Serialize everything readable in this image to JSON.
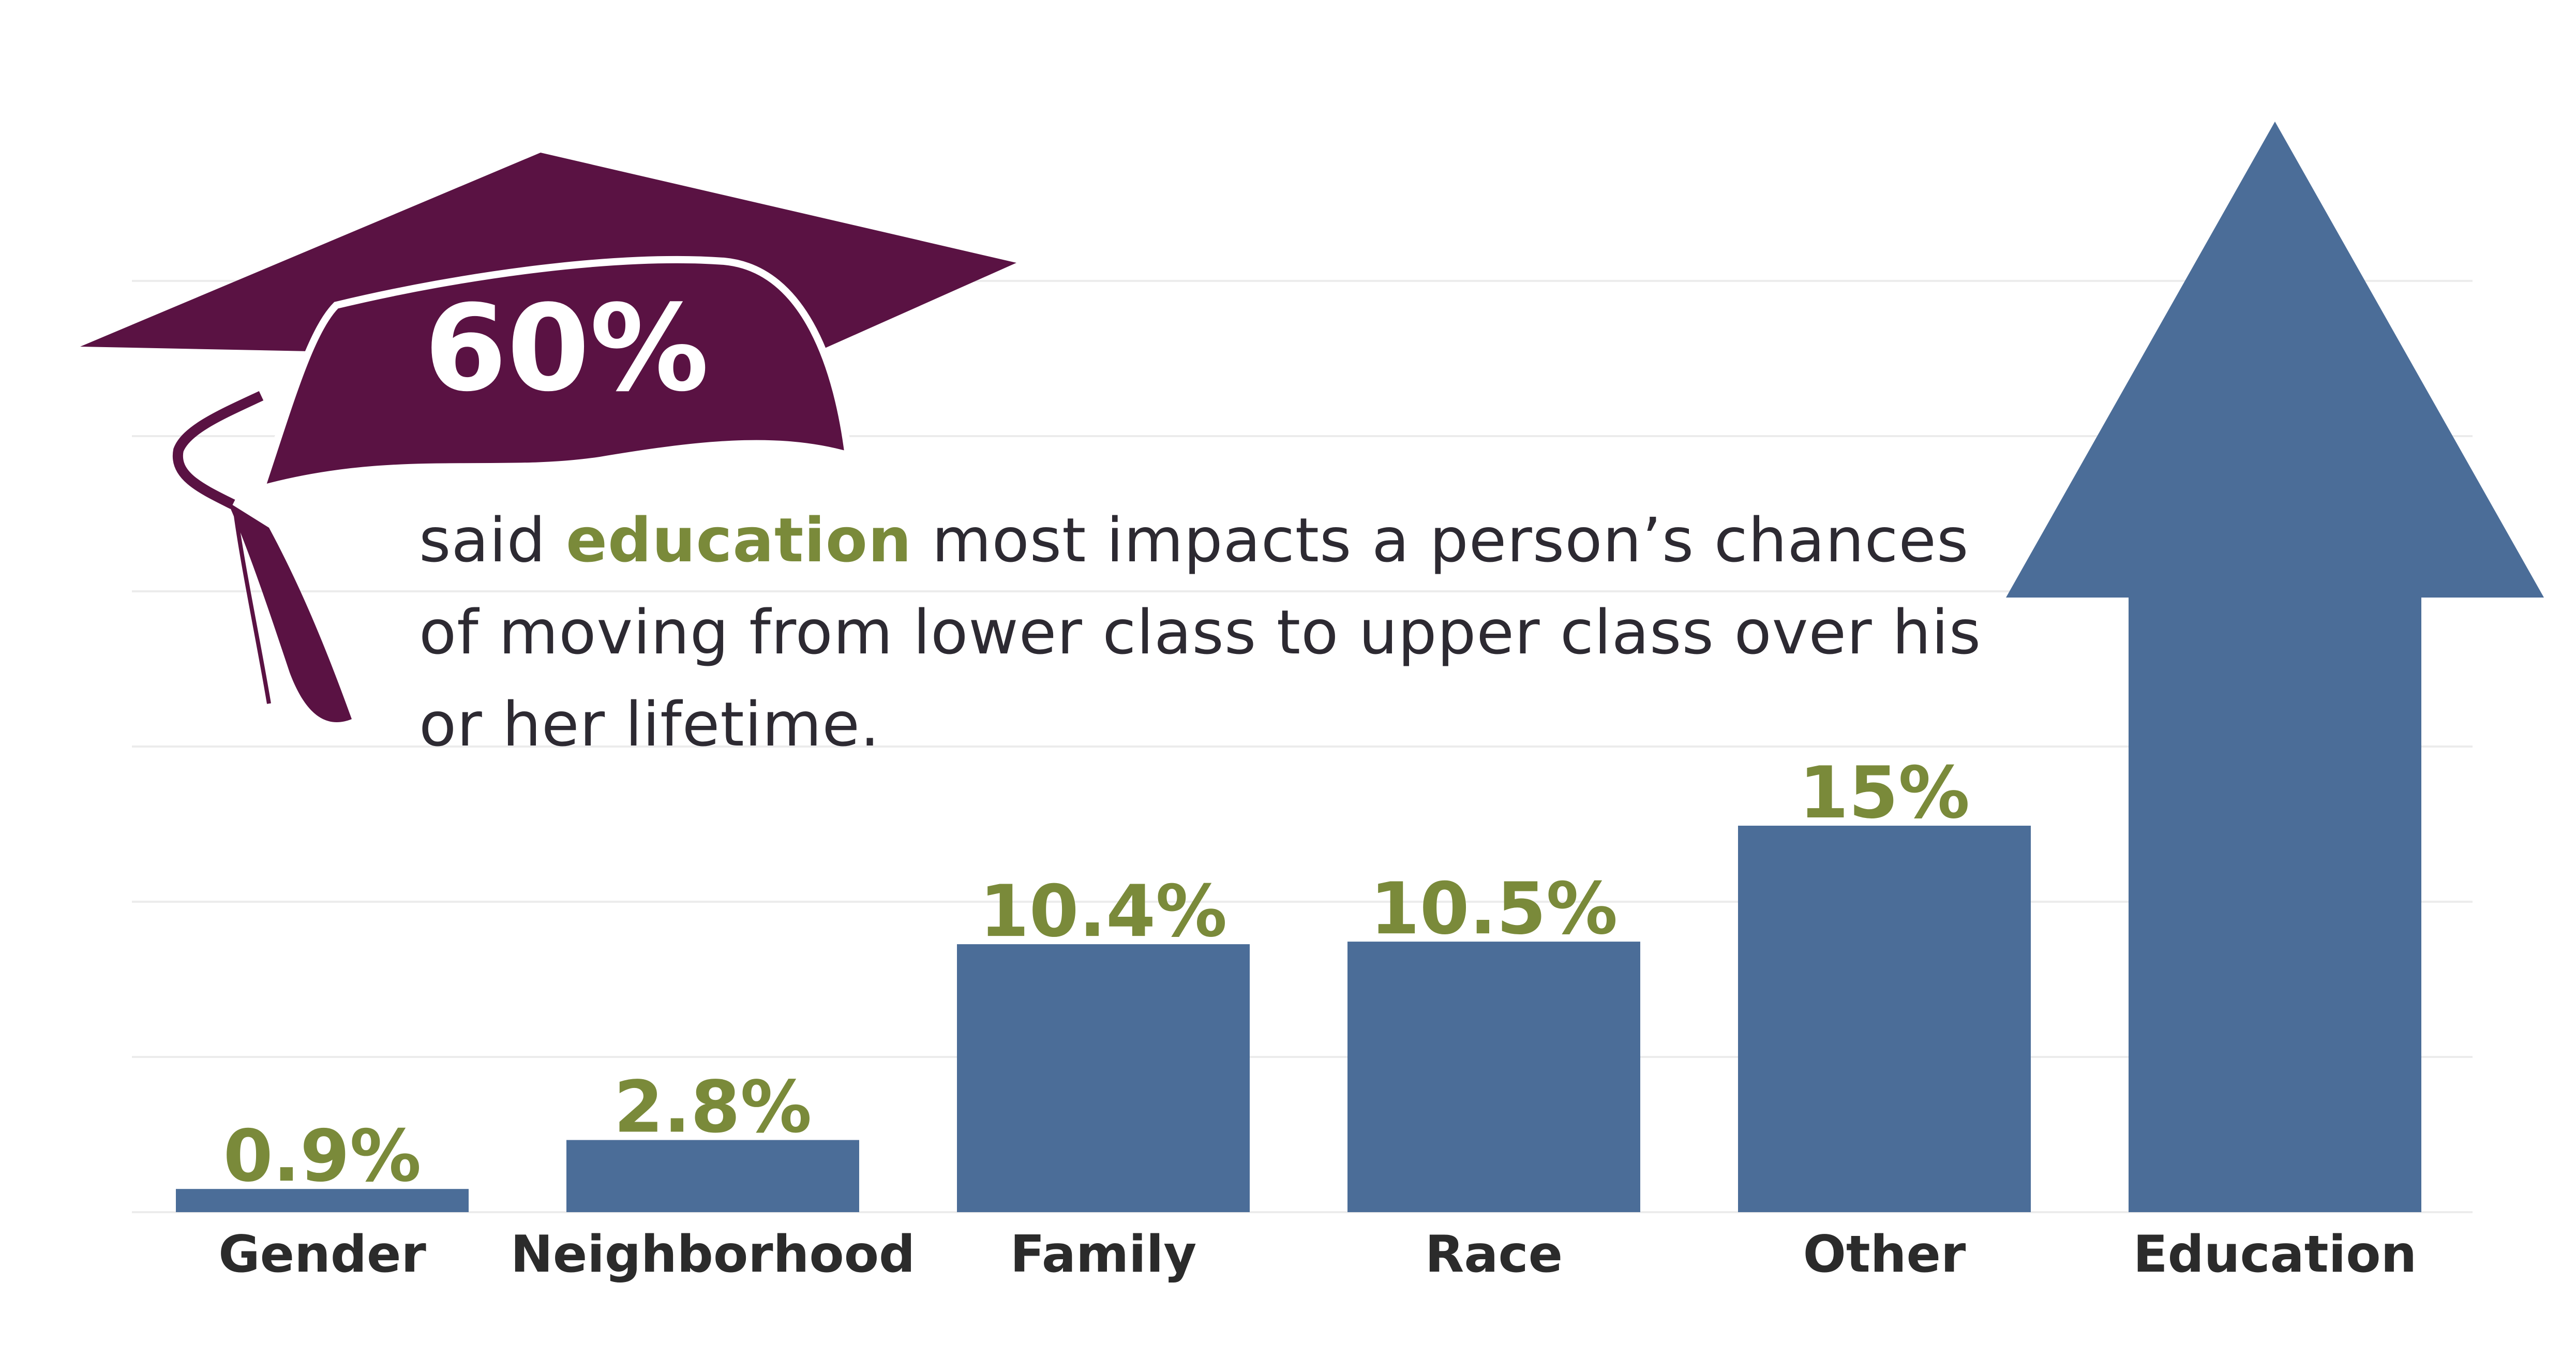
{
  "callout": {
    "percent": "60%",
    "text_before": "said ",
    "text_highlight": "education",
    "text_after": " most impacts a person’s chances of moving from lower class to upper class over his or her lifetime."
  },
  "colors": {
    "bar": "#4b6d98",
    "value_label": "#7a8a3a",
    "category_label": "#2b2b2b",
    "cap": "#5a1243",
    "grid": "#ececec"
  },
  "icons": [
    "graduation-cap-icon",
    "up-arrow-icon"
  ],
  "chart_data": {
    "type": "bar",
    "categories": [
      "Gender",
      "Neighborhood",
      "Family",
      "Race",
      "Other",
      "Education"
    ],
    "values": [
      0.9,
      2.8,
      10.4,
      10.5,
      15,
      60
    ],
    "value_labels": [
      "0.9%",
      "2.8%",
      "10.4%",
      "10.5%",
      "15%",
      ""
    ],
    "title": "",
    "xlabel": "",
    "ylabel": "",
    "ylim": [
      0,
      60
    ],
    "grid": true,
    "legend": "none"
  }
}
